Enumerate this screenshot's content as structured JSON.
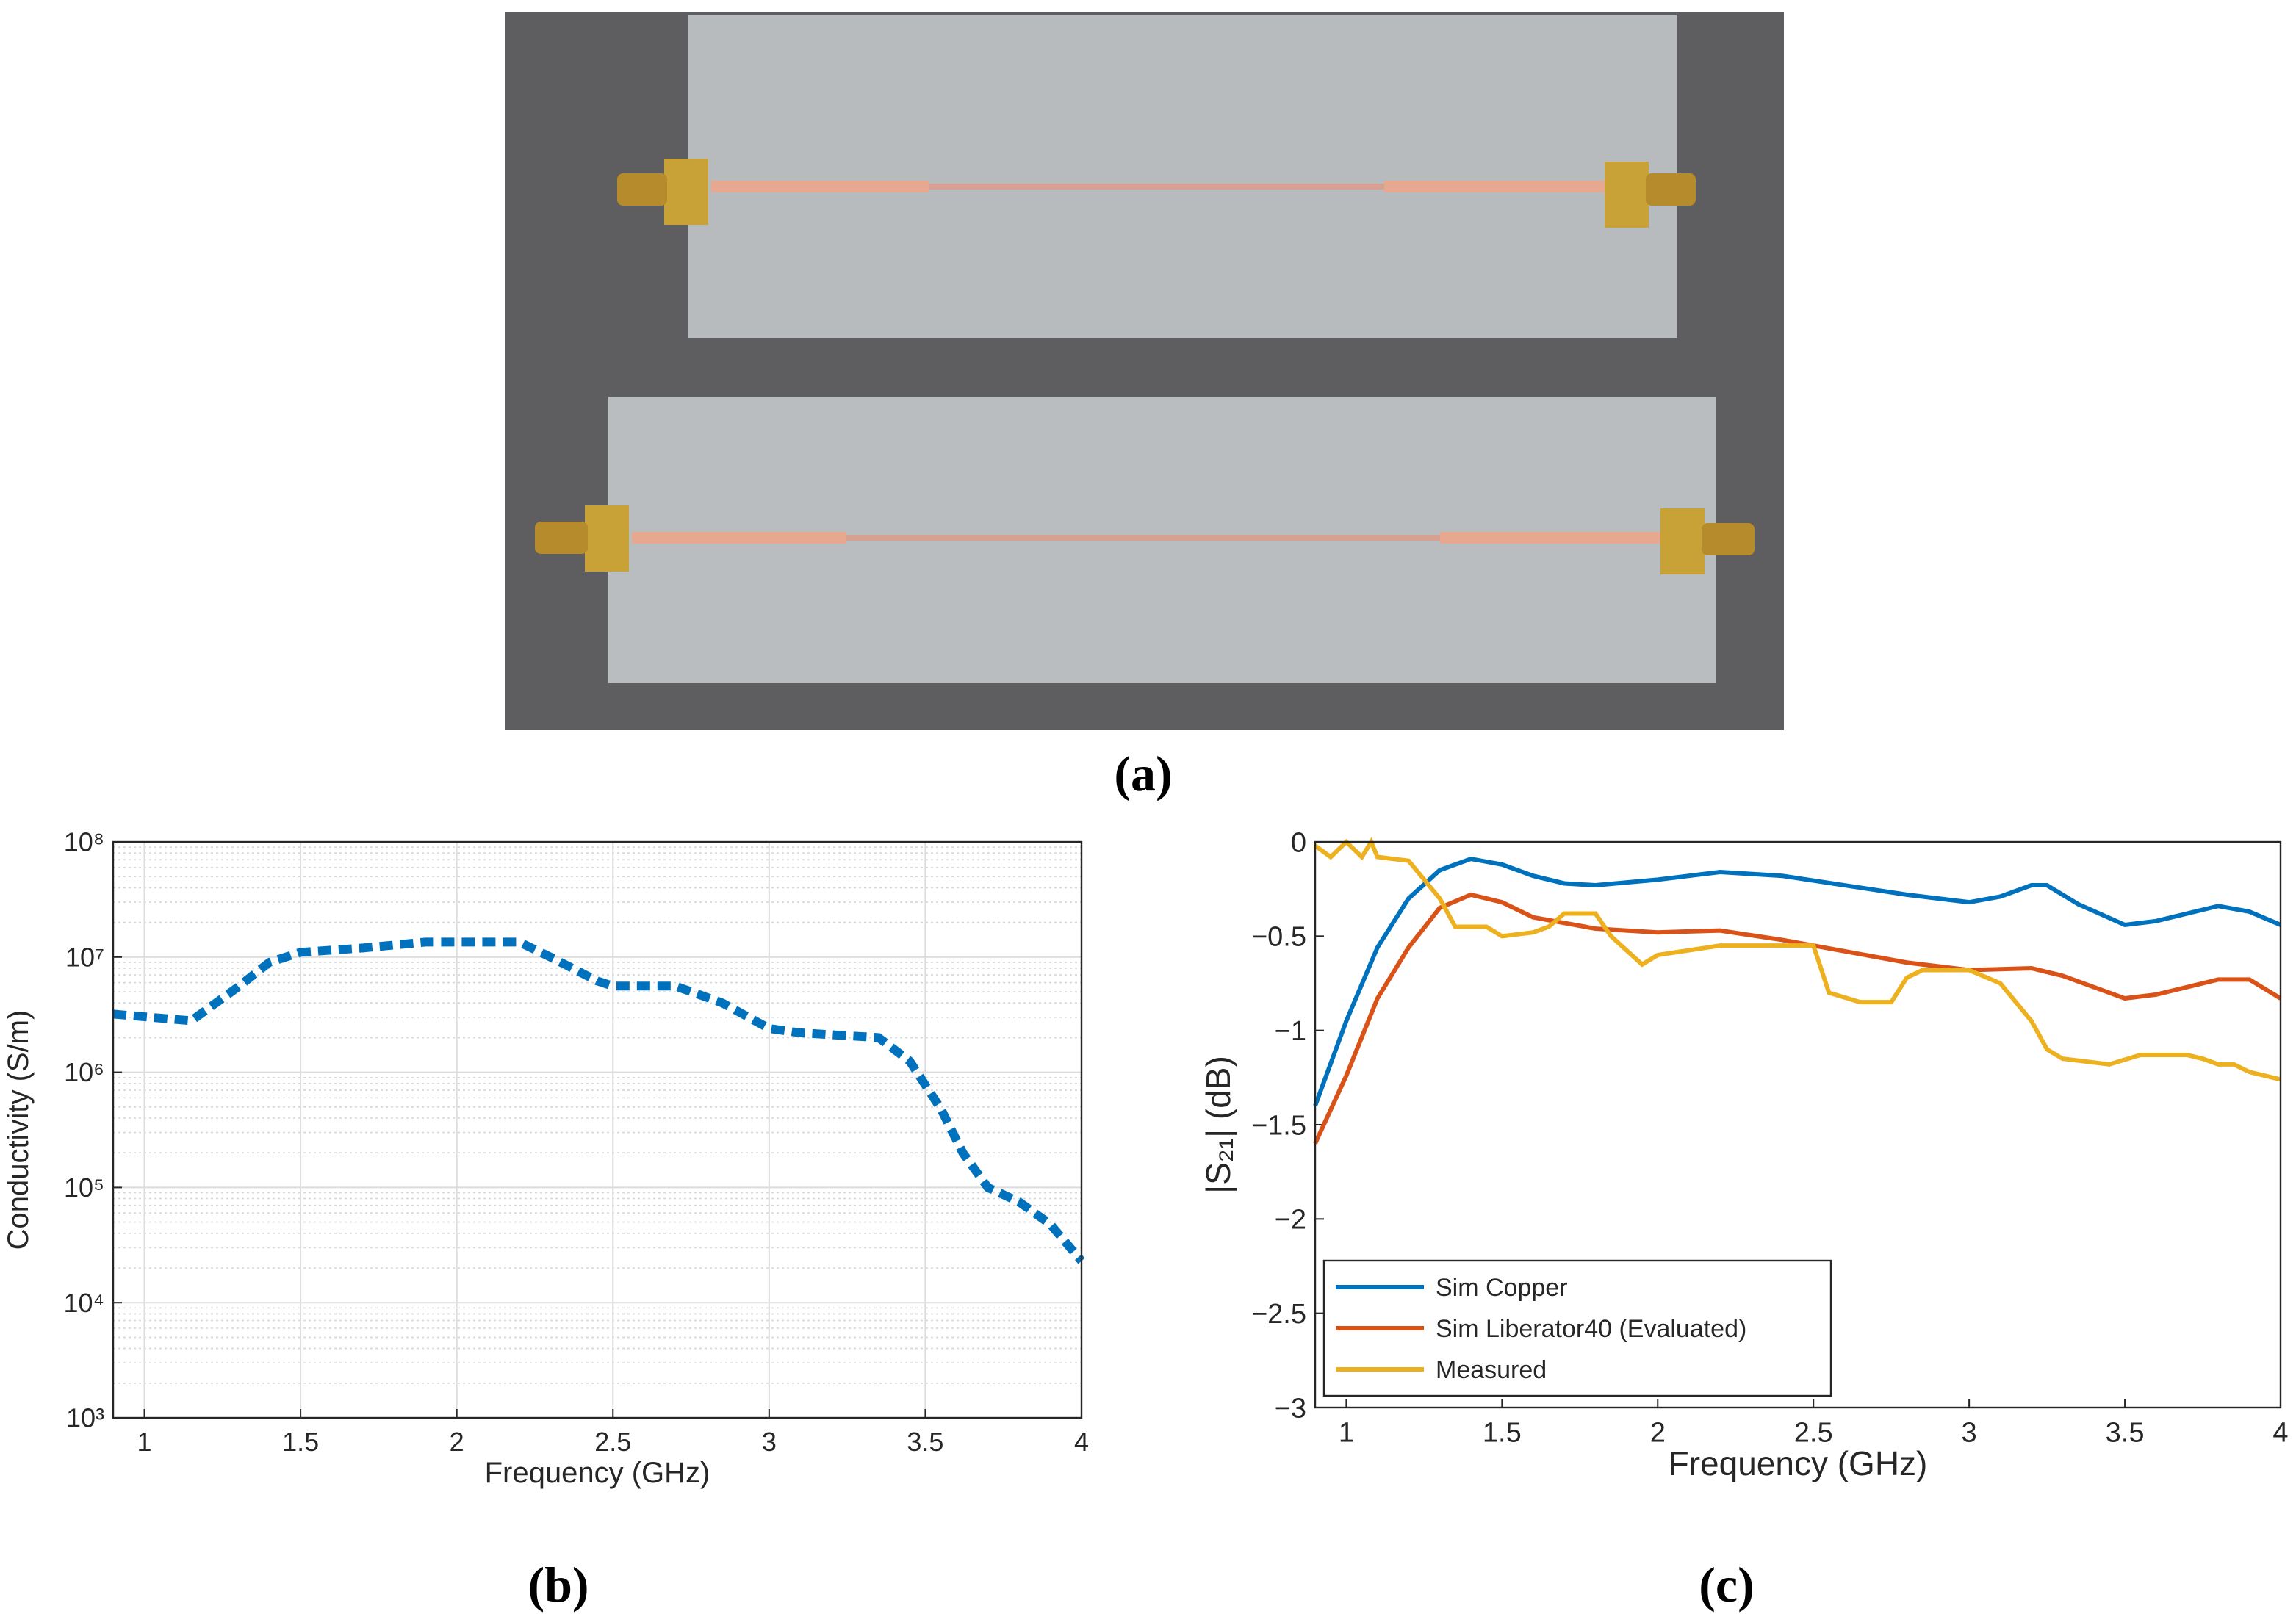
{
  "photo": {
    "caption": "(a)"
  },
  "chart_data": [
    {
      "type": "line",
      "caption": "(b)",
      "xlabel": "Frequency (GHz)",
      "ylabel": "Conductivity (S/m)",
      "log_y": true,
      "grid": true,
      "minor_grid": true,
      "line_style": "dashed",
      "xlim": [
        0.9,
        4
      ],
      "xticks": [
        1,
        1.5,
        2,
        2.5,
        3,
        3.5,
        4
      ],
      "ylim": [
        1000,
        100000000
      ],
      "yticks": [
        {
          "value": 1000,
          "label": "10³"
        },
        {
          "value": 10000,
          "label": "10⁴"
        },
        {
          "value": 100000,
          "label": "10⁵"
        },
        {
          "value": 1000000,
          "label": "10⁶"
        },
        {
          "value": 10000000,
          "label": "10⁷"
        },
        {
          "value": 100000000,
          "label": "10⁸"
        }
      ],
      "series": [
        {
          "color": "#0072bd",
          "x": [
            0.9,
            1.15,
            1.3,
            1.4,
            1.5,
            1.7,
            1.9,
            2.2,
            2.3,
            2.45,
            2.5,
            2.7,
            2.85,
            3.0,
            3.1,
            3.35,
            3.45,
            3.55,
            3.62,
            3.7,
            3.8,
            3.9,
            4.0
          ],
          "values": [
            3200000,
            2800000,
            5500000,
            9000000,
            11000000,
            12000000,
            13500000,
            13500000,
            10000000,
            6200000,
            5600000,
            5600000,
            4000000,
            2400000,
            2200000,
            2000000,
            1250000,
            480000,
            200000,
            100000,
            75000,
            48000,
            23000
          ]
        }
      ]
    },
    {
      "type": "line",
      "caption": "(c)",
      "xlabel": "Frequency (GHz)",
      "ylabel": "|S₂₁| (dB)",
      "log_y": false,
      "grid": false,
      "legend": "lower left",
      "xlim": [
        0.9,
        4
      ],
      "xticks": [
        1,
        1.5,
        2,
        2.5,
        3,
        3.5,
        4
      ],
      "ylim": [
        -3,
        0
      ],
      "yticks": [
        {
          "value": -3,
          "label": "−3"
        },
        {
          "value": -2.5,
          "label": "−2.5"
        },
        {
          "value": -2,
          "label": "−2"
        },
        {
          "value": -1.5,
          "label": "−1.5"
        },
        {
          "value": -1,
          "label": "−1"
        },
        {
          "value": -0.5,
          "label": "−0.5"
        },
        0
      ],
      "series": [
        {
          "name": "Sim Copper",
          "color": "#0072bd",
          "x": [
            0.9,
            1.0,
            1.1,
            1.2,
            1.3,
            1.4,
            1.5,
            1.6,
            1.7,
            1.8,
            2.0,
            2.2,
            2.4,
            2.6,
            2.8,
            3.0,
            3.1,
            3.2,
            3.25,
            3.35,
            3.5,
            3.6,
            3.8,
            3.9,
            4.0
          ],
          "values": [
            -1.4,
            -0.95,
            -0.56,
            -0.3,
            -0.15,
            -0.09,
            -0.12,
            -0.18,
            -0.22,
            -0.23,
            -0.2,
            -0.16,
            -0.18,
            -0.23,
            -0.28,
            -0.32,
            -0.29,
            -0.23,
            -0.23,
            -0.33,
            -0.44,
            -0.42,
            -0.34,
            -0.37,
            -0.44
          ]
        },
        {
          "name": "Sim Liberator40 (Evaluated)",
          "color": "#d95319",
          "x": [
            0.9,
            1.0,
            1.1,
            1.2,
            1.3,
            1.4,
            1.5,
            1.6,
            1.8,
            2.0,
            2.2,
            2.4,
            2.6,
            2.8,
            3.0,
            3.2,
            3.3,
            3.5,
            3.6,
            3.8,
            3.9,
            4.0
          ],
          "values": [
            -1.6,
            -1.24,
            -0.83,
            -0.56,
            -0.35,
            -0.28,
            -0.32,
            -0.4,
            -0.46,
            -0.48,
            -0.47,
            -0.52,
            -0.58,
            -0.64,
            -0.68,
            -0.67,
            -0.71,
            -0.83,
            -0.81,
            -0.73,
            -0.73,
            -0.83
          ]
        },
        {
          "name": "Measured",
          "color": "#edb120",
          "x": [
            0.9,
            0.95,
            1.0,
            1.05,
            1.08,
            1.1,
            1.2,
            1.3,
            1.35,
            1.45,
            1.5,
            1.6,
            1.65,
            1.7,
            1.8,
            1.85,
            1.95,
            2.0,
            2.2,
            2.4,
            2.5,
            2.55,
            2.65,
            2.75,
            2.8,
            2.85,
            3.0,
            3.1,
            3.2,
            3.25,
            3.3,
            3.45,
            3.55,
            3.7,
            3.75,
            3.8,
            3.85,
            3.9,
            4.0
          ],
          "values": [
            -0.02,
            -0.08,
            0,
            -0.08,
            0,
            -0.08,
            -0.1,
            -0.3,
            -0.45,
            -0.45,
            -0.5,
            -0.48,
            -0.45,
            -0.38,
            -0.38,
            -0.5,
            -0.65,
            -0.6,
            -0.55,
            -0.55,
            -0.55,
            -0.8,
            -0.85,
            -0.85,
            -0.72,
            -0.68,
            -0.68,
            -0.75,
            -0.95,
            -1.1,
            -1.15,
            -1.18,
            -1.13,
            -1.13,
            -1.15,
            -1.18,
            -1.18,
            -1.22,
            -1.26
          ]
        }
      ]
    }
  ]
}
